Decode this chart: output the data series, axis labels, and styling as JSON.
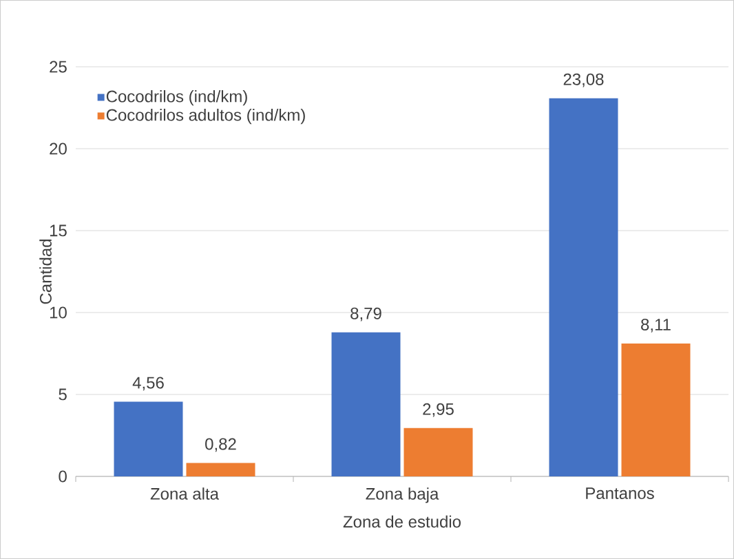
{
  "chart_data": {
    "type": "bar",
    "xlabel": "Zona de estudio",
    "ylabel": "Cantidad",
    "categories": [
      "Zona alta",
      "Zona baja",
      "Pantanos"
    ],
    "series": [
      {
        "name": "Cocodrilos (ind/km)",
        "color": "#4472c4",
        "values": [
          4.56,
          8.79,
          23.08
        ],
        "value_labels": [
          "4,56",
          "8,79",
          "23,08"
        ]
      },
      {
        "name": "Cocodrilos adultos (ind/km)",
        "color": "#ed7d31",
        "values": [
          0.82,
          2.95,
          8.11
        ],
        "value_labels": [
          "0,82",
          "2,95",
          "8,11"
        ]
      }
    ],
    "ylim": [
      0,
      25
    ],
    "yticks": [
      0,
      5,
      10,
      15,
      20,
      25
    ],
    "grid": "y",
    "legend": "top left"
  }
}
